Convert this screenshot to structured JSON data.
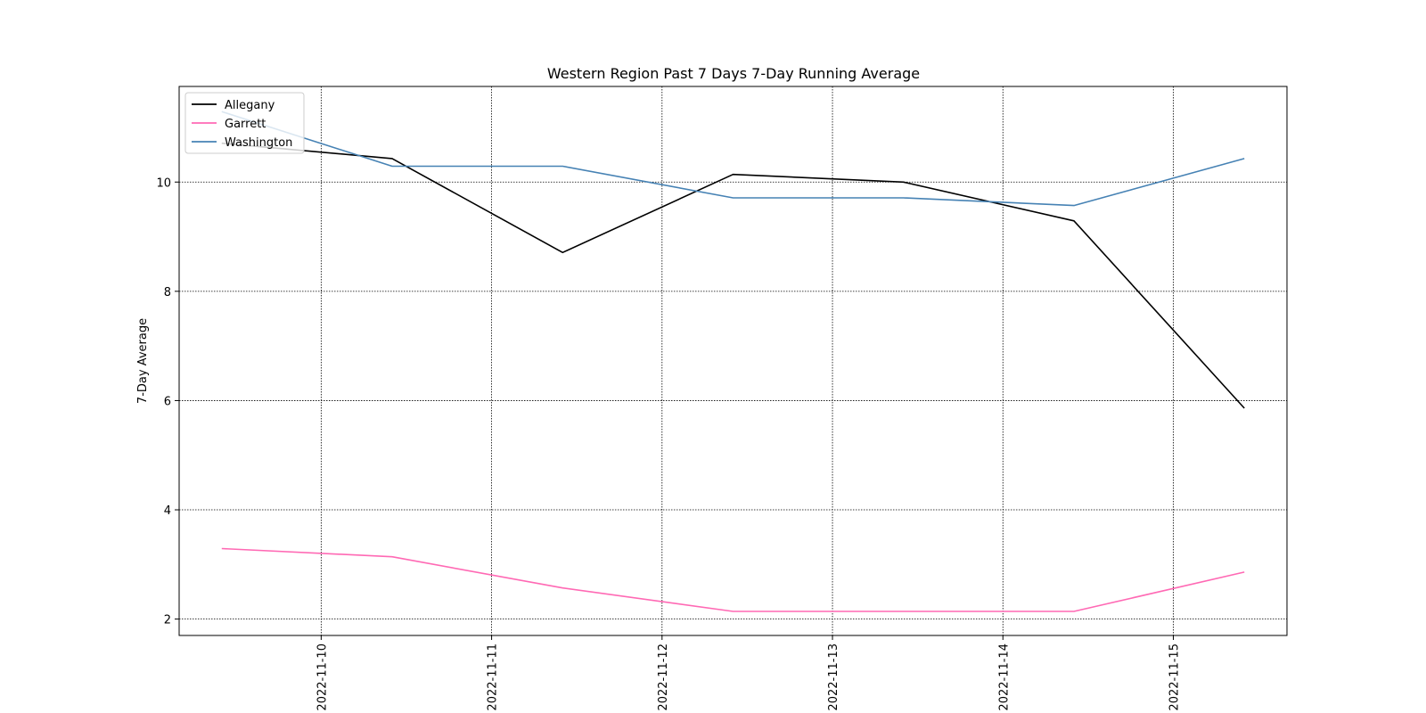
{
  "chart_data": {
    "type": "line",
    "title": "Western Region Past 7 Days 7-Day Running Average",
    "xlabel": "",
    "ylabel": "7-Day Average",
    "x": [
      "2022-11-09 10:00",
      "2022-11-10 10:00",
      "2022-11-11 10:00",
      "2022-11-12 10:00",
      "2022-11-13 10:00",
      "2022-11-14 10:00",
      "2022-11-15 10:00"
    ],
    "x_ticks": [
      "2022-11-10",
      "2022-11-11",
      "2022-11-12",
      "2022-11-13",
      "2022-11-14",
      "2022-11-15"
    ],
    "xlim": [
      "2022-11-09 04:00",
      "2022-11-15 16:00"
    ],
    "y_ticks": [
      2,
      4,
      6,
      8,
      10
    ],
    "ylim": [
      1.7,
      11.75
    ],
    "grid": true,
    "legend_position": "top-left",
    "series": [
      {
        "name": "Allegany",
        "color": "#000000",
        "values": [
          10.71,
          10.43,
          8.71,
          10.14,
          10.0,
          9.29,
          5.86
        ]
      },
      {
        "name": "Garrett",
        "color": "#ff69b4",
        "values": [
          3.29,
          3.14,
          2.57,
          2.14,
          2.14,
          2.14,
          2.86
        ]
      },
      {
        "name": "Washington",
        "color": "#4682b4",
        "values": [
          11.29,
          10.29,
          10.29,
          9.71,
          9.71,
          9.57,
          10.43
        ]
      }
    ]
  }
}
